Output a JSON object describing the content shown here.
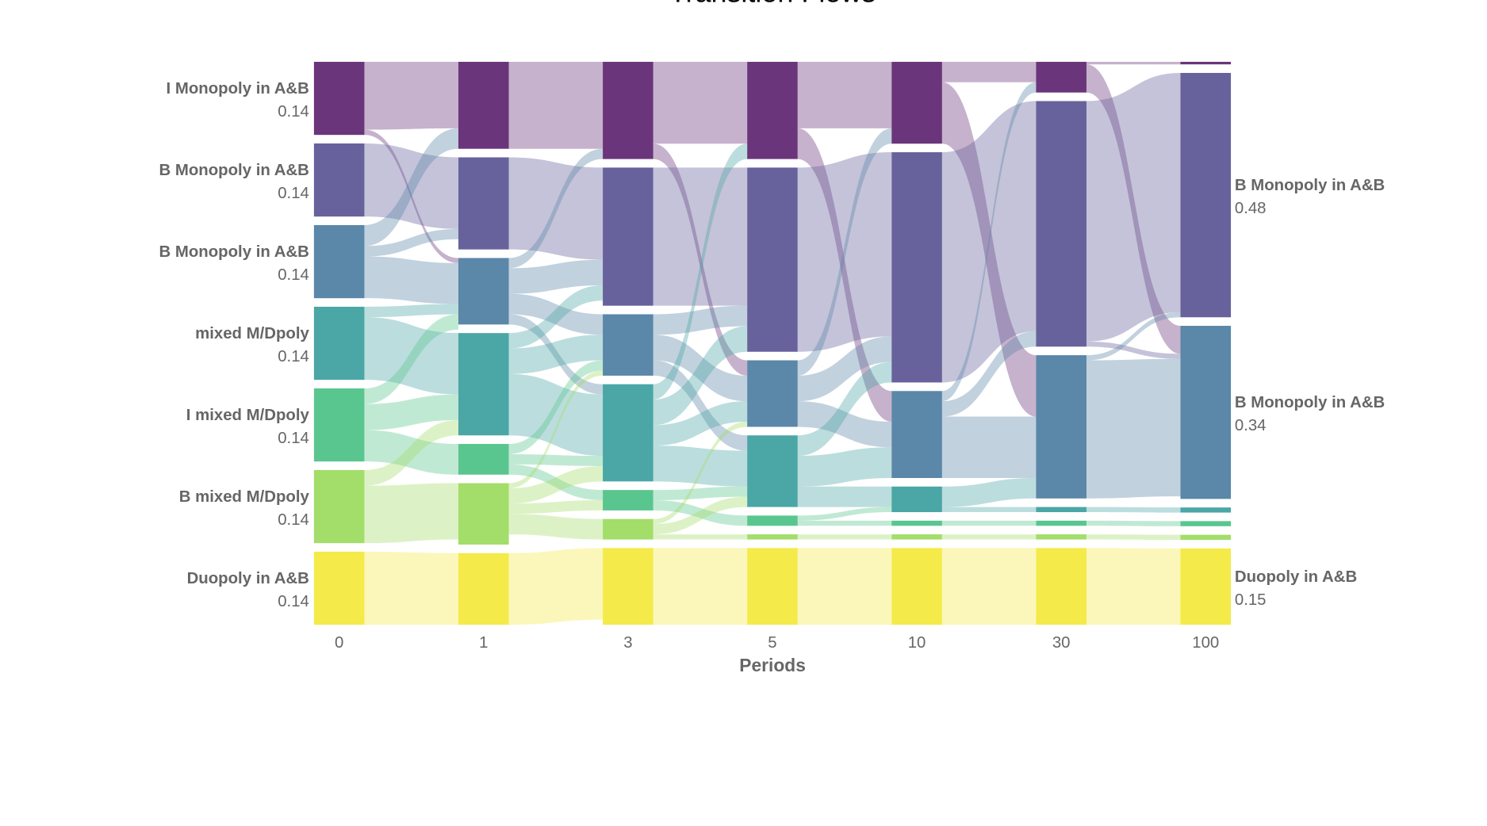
{
  "chart_data": {
    "type": "sankey",
    "title": "Transition Flows",
    "x_label": "Periods",
    "categories": [
      "0",
      "1",
      "3",
      "5",
      "10",
      "30",
      "100"
    ],
    "series": [
      {
        "name": "I Monopoly in A&B",
        "color": "#6a357a",
        "values": [
          0.14,
          0.17,
          0.19,
          0.19,
          0.16,
          0.06,
          0.005
        ]
      },
      {
        "name": "B Monopoly in A&B",
        "color": "#67629c",
        "values": [
          0.14,
          0.18,
          0.27,
          0.36,
          0.45,
          0.48,
          0.48
        ]
      },
      {
        "name": "B Monopoly in A&B",
        "color": "#5b87a8",
        "values": [
          0.14,
          0.13,
          0.12,
          0.13,
          0.17,
          0.28,
          0.34
        ]
      },
      {
        "name": "mixed M/Dpoly",
        "color": "#4ba6a6",
        "values": [
          0.14,
          0.2,
          0.19,
          0.14,
          0.05,
          0.01,
          0.01
        ]
      },
      {
        "name": "I mixed M/Dpoly",
        "color": "#5ac68f",
        "values": [
          0.14,
          0.06,
          0.04,
          0.02,
          0.01,
          0.01,
          0.01
        ]
      },
      {
        "name": "B mixed M/Dpoly",
        "color": "#a3dd6a",
        "values": [
          0.14,
          0.12,
          0.04,
          0.01,
          0.01,
          0.01,
          0.01
        ]
      },
      {
        "name": "Duopoly in A&B",
        "color": "#f4ea4a",
        "values": [
          0.14,
          0.14,
          0.15,
          0.15,
          0.15,
          0.15,
          0.15
        ]
      }
    ],
    "flows": [
      [
        [
          0,
          0,
          0.13
        ],
        [
          0,
          2,
          0.01
        ],
        [
          1,
          1,
          0.14
        ],
        [
          2,
          0,
          0.04
        ],
        [
          2,
          1,
          0.02
        ],
        [
          2,
          2,
          0.08
        ],
        [
          3,
          2,
          0.02
        ],
        [
          3,
          3,
          0.12
        ],
        [
          4,
          2,
          0.03
        ],
        [
          4,
          3,
          0.05
        ],
        [
          4,
          4,
          0.06
        ],
        [
          5,
          3,
          0.03
        ],
        [
          5,
          5,
          0.11
        ],
        [
          6,
          6,
          0.14
        ]
      ],
      [
        [
          0,
          0,
          0.17
        ],
        [
          1,
          1,
          0.18
        ],
        [
          2,
          0,
          0.02
        ],
        [
          2,
          1,
          0.05
        ],
        [
          2,
          2,
          0.04
        ],
        [
          2,
          3,
          0.02
        ],
        [
          3,
          1,
          0.03
        ],
        [
          3,
          2,
          0.05
        ],
        [
          3,
          3,
          0.12
        ],
        [
          4,
          2,
          0.02
        ],
        [
          4,
          3,
          0.02
        ],
        [
          4,
          4,
          0.02
        ],
        [
          5,
          2,
          0.01
        ],
        [
          5,
          3,
          0.03
        ],
        [
          5,
          4,
          0.02
        ],
        [
          5,
          5,
          0.04
        ],
        [
          6,
          6,
          0.14
        ]
      ],
      [
        [
          0,
          0,
          0.16
        ],
        [
          0,
          2,
          0.03
        ],
        [
          1,
          1,
          0.27
        ],
        [
          2,
          1,
          0.04
        ],
        [
          2,
          2,
          0.05
        ],
        [
          2,
          3,
          0.03
        ],
        [
          3,
          0,
          0.03
        ],
        [
          3,
          1,
          0.05
        ],
        [
          3,
          2,
          0.04
        ],
        [
          3,
          3,
          0.07
        ],
        [
          4,
          3,
          0.02
        ],
        [
          4,
          4,
          0.02
        ],
        [
          5,
          2,
          0.01
        ],
        [
          5,
          3,
          0.02
        ],
        [
          5,
          5,
          0.01
        ],
        [
          6,
          6,
          0.15
        ]
      ],
      [
        [
          0,
          0,
          0.13
        ],
        [
          0,
          2,
          0.06
        ],
        [
          1,
          1,
          0.36
        ],
        [
          2,
          0,
          0.03
        ],
        [
          2,
          1,
          0.05
        ],
        [
          2,
          2,
          0.05
        ],
        [
          3,
          1,
          0.04
        ],
        [
          3,
          2,
          0.06
        ],
        [
          3,
          3,
          0.04
        ],
        [
          4,
          3,
          0.01
        ],
        [
          4,
          4,
          0.01
        ],
        [
          5,
          5,
          0.01
        ],
        [
          6,
          6,
          0.15
        ]
      ],
      [
        [
          0,
          0,
          0.04
        ],
        [
          0,
          2,
          0.12
        ],
        [
          1,
          1,
          0.45
        ],
        [
          2,
          0,
          0.02
        ],
        [
          2,
          1,
          0.03
        ],
        [
          2,
          2,
          0.12
        ],
        [
          3,
          2,
          0.04
        ],
        [
          3,
          3,
          0.01
        ],
        [
          4,
          4,
          0.01
        ],
        [
          5,
          5,
          0.01
        ],
        [
          6,
          6,
          0.15
        ]
      ],
      [
        [
          0,
          0,
          0.005
        ],
        [
          0,
          2,
          0.055
        ],
        [
          1,
          1,
          0.47
        ],
        [
          1,
          2,
          0.01
        ],
        [
          2,
          1,
          0.01
        ],
        [
          2,
          2,
          0.27
        ],
        [
          3,
          3,
          0.01
        ],
        [
          4,
          4,
          0.01
        ],
        [
          5,
          5,
          0.01
        ],
        [
          6,
          6,
          0.15
        ]
      ]
    ]
  }
}
